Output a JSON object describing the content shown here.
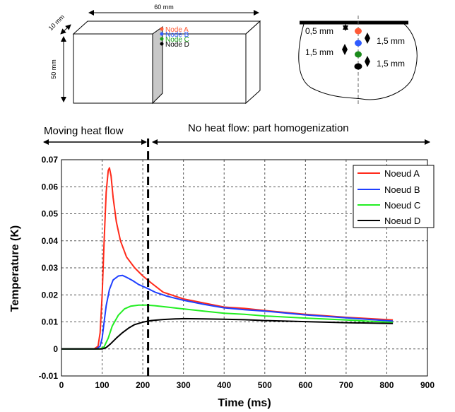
{
  "top_diagrams": {
    "block": {
      "dim_width": "60 mm",
      "dim_depth": "10 mm",
      "dim_height": "50 mm",
      "nodes": [
        {
          "label": "Node A",
          "color": "#ff5a36"
        },
        {
          "label": "Node B",
          "color": "#2f5bff"
        },
        {
          "label": "Node C",
          "color": "#1aa01a"
        },
        {
          "label": "Node D",
          "color": "#000000"
        }
      ]
    },
    "cross_section": {
      "spacing_labels": [
        "0,5 mm",
        "1,5 mm",
        "1,5 mm",
        "1,5 mm"
      ],
      "node_colors": [
        "#ff5a36",
        "#2f5bff",
        "#1a8a1a",
        "#000000"
      ]
    }
  },
  "phases": {
    "moving": "Moving heat flow",
    "homogenization": "No heat flow: part homogenization"
  },
  "chart_data": {
    "type": "line",
    "title": "",
    "xlabel": "Time (ms)",
    "ylabel": "Temperature (K)",
    "xlim": [
      0,
      900
    ],
    "ylim": [
      -0.01,
      0.07
    ],
    "xticks": [
      0,
      100,
      200,
      300,
      400,
      500,
      600,
      700,
      800,
      900
    ],
    "yticks": [
      -0.01,
      0,
      0.01,
      0.02,
      0.03,
      0.04,
      0.05,
      0.06,
      0.07
    ],
    "xtick_labels": [
      "0",
      "100",
      "200",
      "300",
      "400",
      "500",
      "600",
      "700",
      "800",
      "900"
    ],
    "ytick_labels": [
      "-0.01",
      "0",
      "0.01",
      "0.02",
      "0.03",
      "0.04",
      "0.05",
      "0.06",
      "0.07"
    ],
    "grid": true,
    "legend_position": "top-right",
    "vline_x": 213,
    "series": [
      {
        "name": "Noeud A",
        "color": "#ff2a1a",
        "x": [
          0,
          80,
          90,
          95,
          100,
          105,
          110,
          115,
          118,
          122,
          127,
          135,
          145,
          160,
          180,
          200,
          220,
          250,
          300,
          350,
          400,
          450,
          500,
          600,
          700,
          815
        ],
        "y": [
          0,
          0,
          0.001,
          0.006,
          0.02,
          0.04,
          0.058,
          0.066,
          0.067,
          0.064,
          0.056,
          0.047,
          0.04,
          0.034,
          0.03,
          0.027,
          0.0245,
          0.021,
          0.0185,
          0.017,
          0.0155,
          0.015,
          0.0142,
          0.0128,
          0.0117,
          0.0107
        ]
      },
      {
        "name": "Noeud B",
        "color": "#1f3fff",
        "x": [
          0,
          85,
          95,
          100,
          105,
          110,
          118,
          127,
          140,
          150,
          160,
          175,
          190,
          210,
          230,
          260,
          300,
          350,
          400,
          450,
          500,
          600,
          700,
          815
        ],
        "y": [
          0,
          0,
          0.001,
          0.004,
          0.01,
          0.016,
          0.022,
          0.0255,
          0.027,
          0.0272,
          0.0265,
          0.0253,
          0.0238,
          0.0225,
          0.021,
          0.0195,
          0.018,
          0.0165,
          0.0152,
          0.0145,
          0.014,
          0.0126,
          0.0115,
          0.0103
        ]
      },
      {
        "name": "Noeud C",
        "color": "#22ee22",
        "x": [
          0,
          95,
          105,
          115,
          125,
          140,
          155,
          170,
          190,
          210,
          230,
          260,
          300,
          350,
          400,
          450,
          500,
          600,
          700,
          815
        ],
        "y": [
          0,
          0,
          0.0008,
          0.004,
          0.0085,
          0.0125,
          0.0148,
          0.0158,
          0.0162,
          0.0162,
          0.016,
          0.0155,
          0.0148,
          0.014,
          0.0132,
          0.0128,
          0.0122,
          0.0114,
          0.0107,
          0.0098
        ]
      },
      {
        "name": "Noeud D",
        "color": "#000000",
        "x": [
          0,
          100,
          110,
          120,
          135,
          150,
          165,
          180,
          200,
          220,
          250,
          280,
          300,
          350,
          400,
          450,
          500,
          600,
          700,
          815
        ],
        "y": [
          0,
          0,
          0.0005,
          0.0018,
          0.004,
          0.006,
          0.0077,
          0.009,
          0.0099,
          0.0105,
          0.0109,
          0.0111,
          0.0112,
          0.0111,
          0.011,
          0.0108,
          0.0105,
          0.0101,
          0.0097,
          0.0094
        ]
      }
    ]
  }
}
